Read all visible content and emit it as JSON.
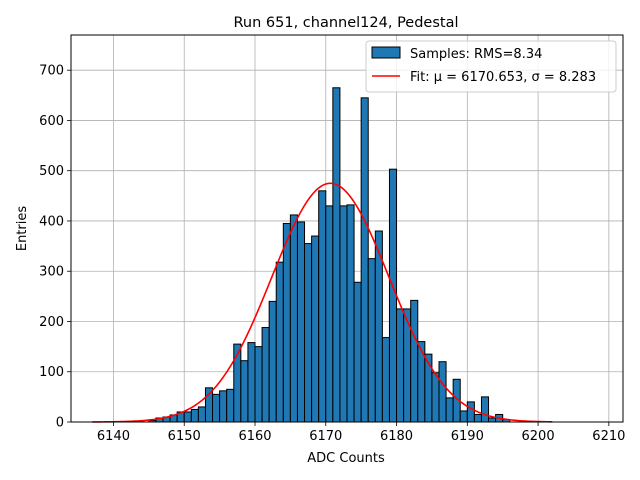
{
  "chart_data": {
    "type": "bar",
    "title": "Run 651, channel124, Pedestal",
    "xlabel": "ADC Counts",
    "ylabel": "Entries",
    "xlim": [
      6134,
      6212
    ],
    "ylim": [
      0,
      770
    ],
    "xticks": [
      6140,
      6150,
      6160,
      6170,
      6180,
      6190,
      6200,
      6210
    ],
    "yticks": [
      0,
      100,
      200,
      300,
      400,
      500,
      600,
      700
    ],
    "grid": true,
    "legend_position": "top-right",
    "histogram": {
      "name": "Samples: RMS=8.34",
      "color": "#1f77b4",
      "edgecolor": "#000000",
      "bin_width": 1,
      "bin_starts": [
        6145,
        6146,
        6147,
        6148,
        6149,
        6150,
        6151,
        6152,
        6153,
        6154,
        6155,
        6156,
        6157,
        6158,
        6159,
        6160,
        6161,
        6162,
        6163,
        6164,
        6165,
        6166,
        6167,
        6168,
        6169,
        6170,
        6171,
        6172,
        6173,
        6174,
        6175,
        6176,
        6177,
        6178,
        6179,
        6180,
        6181,
        6182,
        6183,
        6184,
        6185,
        6186,
        6187,
        6188,
        6189,
        6190,
        6191,
        6192,
        6193,
        6194,
        6195
      ],
      "values": [
        3,
        8,
        10,
        14,
        20,
        20,
        25,
        30,
        68,
        55,
        62,
        65,
        155,
        122,
        158,
        150,
        188,
        240,
        318,
        395,
        412,
        398,
        355,
        370,
        460,
        430,
        665,
        430,
        432,
        278,
        645,
        325,
        380,
        168,
        503,
        225,
        225,
        242,
        160,
        135,
        98,
        120,
        48,
        85,
        22,
        40,
        15,
        50,
        8,
        15,
        5
      ]
    },
    "fit": {
      "name": "Fit: μ = 6170.653, σ = 8.283",
      "color": "#ff0000",
      "mu": 6170.653,
      "sigma": 8.283,
      "amplitude": 475,
      "x_range": [
        6137,
        6202
      ]
    }
  }
}
